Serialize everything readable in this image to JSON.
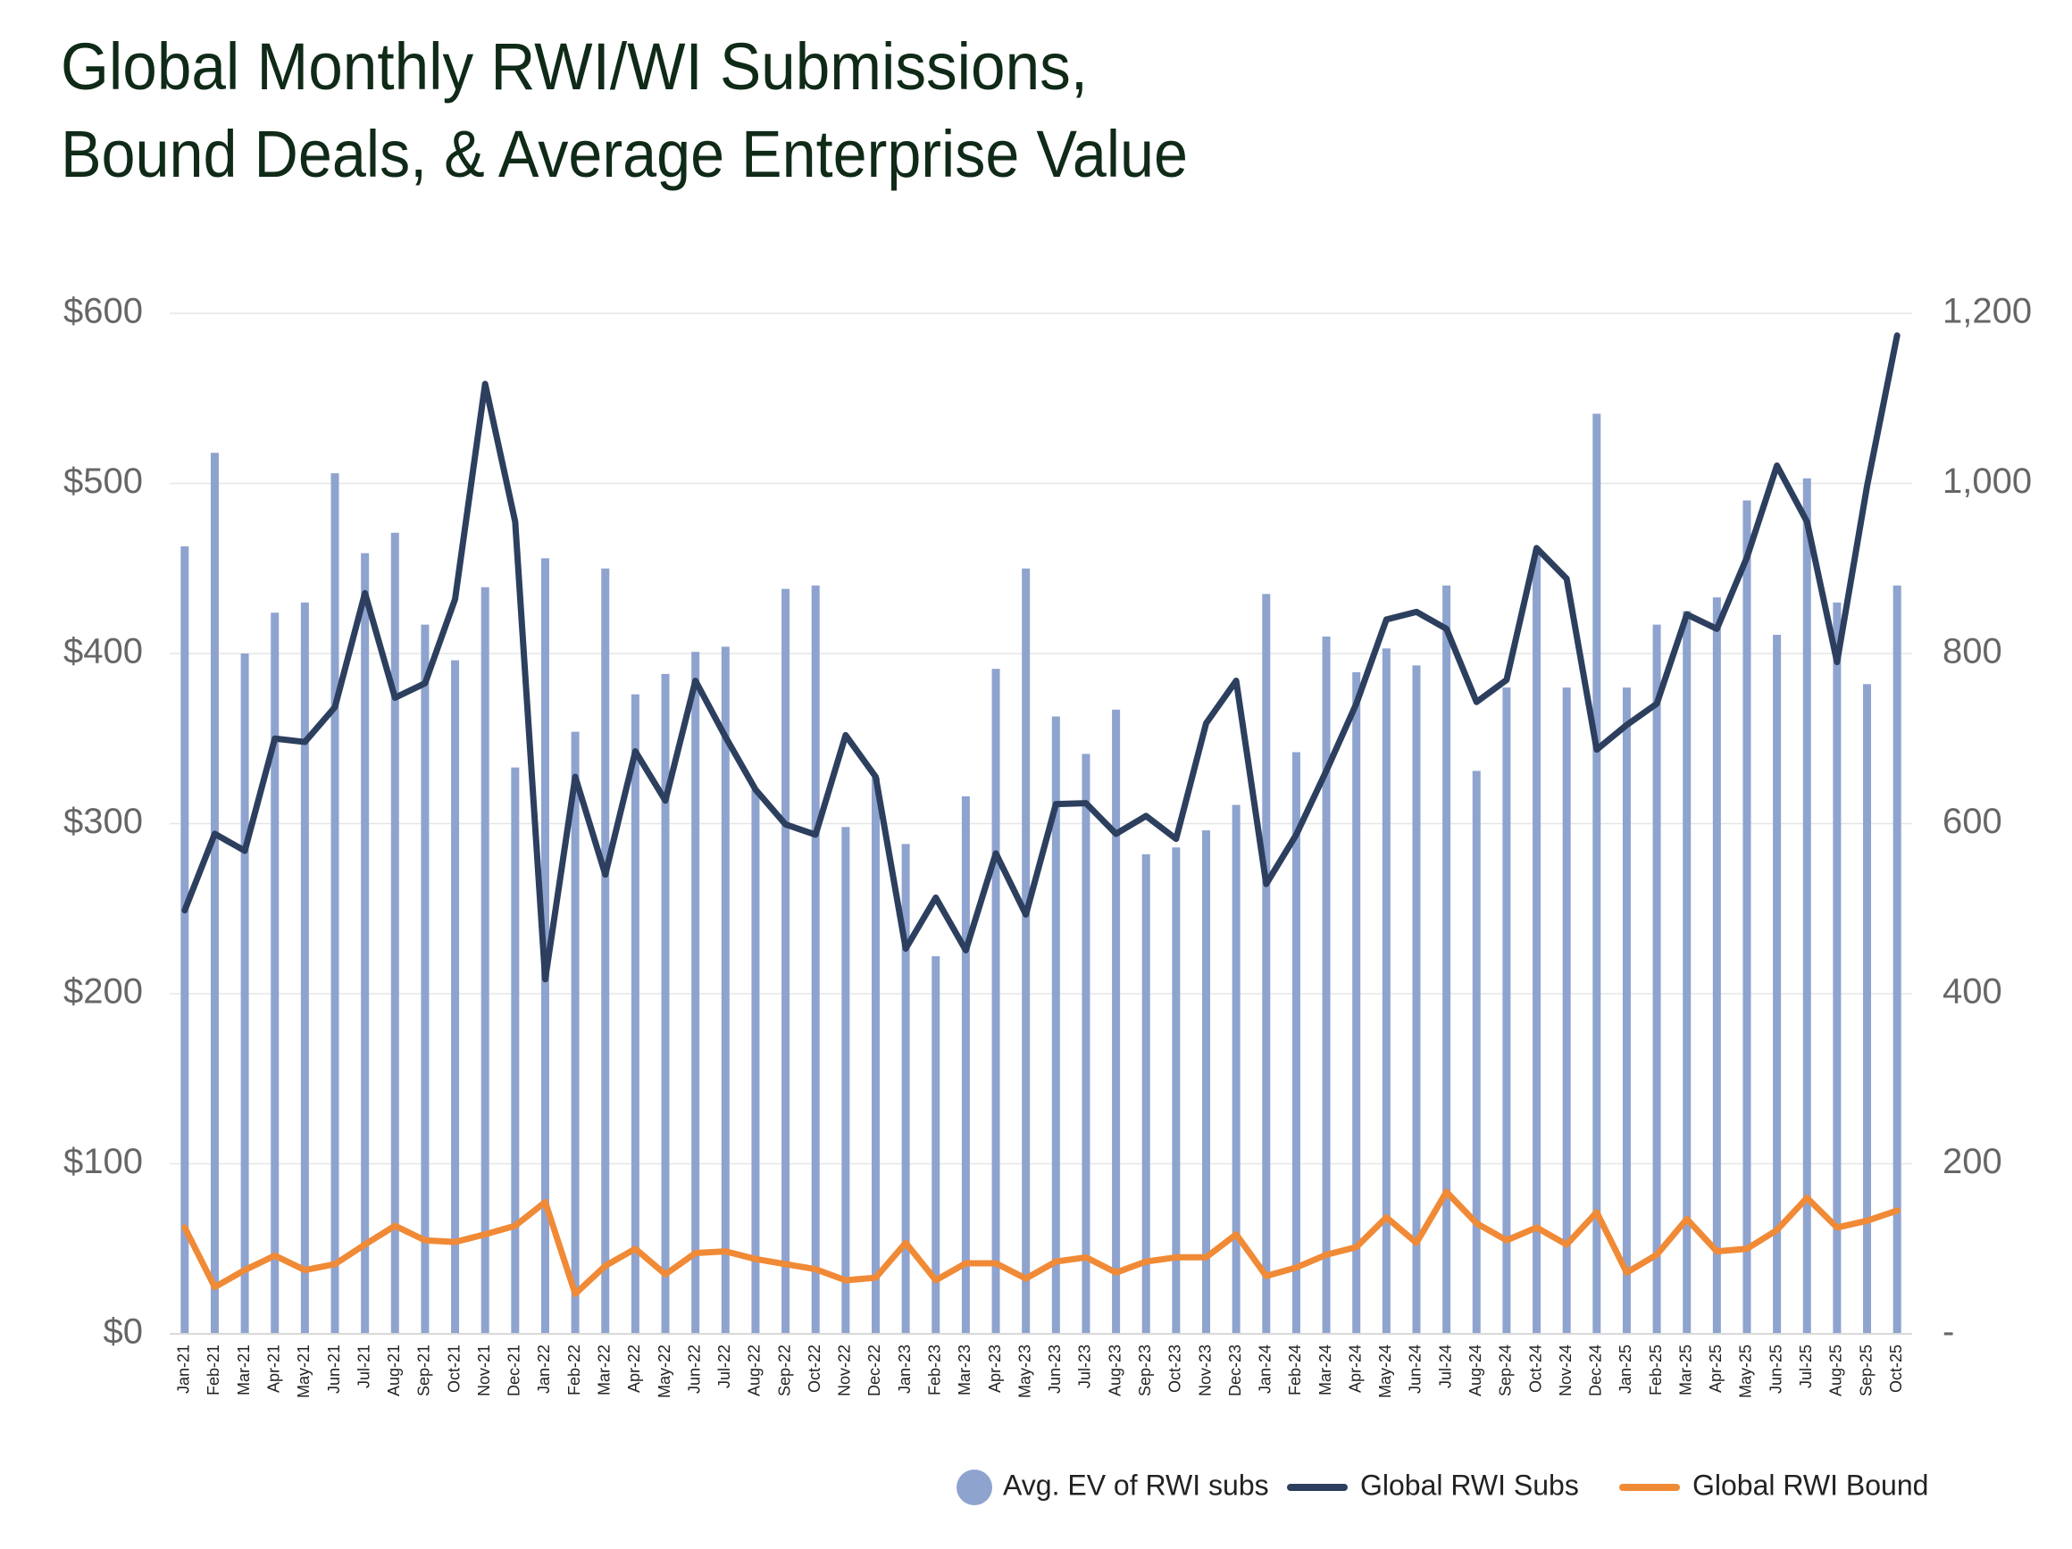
{
  "chart_data": {
    "type": "combo",
    "title": [
      "Global Monthly RWI/WI Submissions,",
      "Bound Deals, & Average Enterprise Value"
    ],
    "categories": [
      "Jan-21",
      "Feb-21",
      "Mar-21",
      "Apr-21",
      "May-21",
      "Jun-21",
      "Jul-21",
      "Aug-21",
      "Sep-21",
      "Oct-21",
      "Nov-21",
      "Dec-21",
      "Jan-22",
      "Feb-22",
      "Mar-22",
      "Apr-22",
      "May-22",
      "Jun-22",
      "Jul-22",
      "Aug-22",
      "Sep-22",
      "Oct-22",
      "Nov-22",
      "Dec-22",
      "Jan-23",
      "Feb-23",
      "Mar-23",
      "Apr-23",
      "May-23",
      "Jun-23",
      "Jul-23",
      "Aug-23",
      "Sep-23",
      "Oct-23",
      "Nov-23",
      "Dec-23",
      "Jan-24",
      "Feb-24",
      "Mar-24",
      "Apr-24",
      "May-24",
      "Jun-24",
      "Jul-24",
      "Aug-24",
      "Sep-24",
      "Oct-24",
      "Nov-24",
      "Dec-24",
      "Jan-25",
      "Feb-25",
      "Mar-25",
      "Apr-25",
      "May-25",
      "Jun-25",
      "Jul-25",
      "Aug-25",
      "Sep-25",
      "Oct-25"
    ],
    "series": [
      {
        "name": "Avg. EV of RWI subs",
        "type": "bar",
        "axis": "y",
        "color": "#8fa3cf",
        "values": [
          463,
          518,
          400,
          424,
          430,
          506,
          459,
          471,
          417,
          396,
          439,
          333,
          456,
          354,
          450,
          376,
          388,
          401,
          404,
          320,
          438,
          440,
          298,
          327,
          288,
          222,
          316,
          391,
          450,
          363,
          341,
          367,
          282,
          286,
          296,
          311,
          435,
          342,
          410,
          389,
          403,
          393,
          440,
          331,
          380,
          461,
          380,
          541,
          380,
          417,
          425,
          433,
          490,
          411,
          503,
          430,
          382,
          440
        ]
      },
      {
        "name": "Global RWI Subs",
        "type": "line",
        "axis": "y2",
        "color": "#2d3f5e",
        "values": [
          498,
          588,
          568,
          700,
          696,
          737,
          871,
          748,
          765,
          864,
          1117,
          955,
          417,
          655,
          540,
          685,
          627,
          768,
          702,
          640,
          599,
          587,
          704,
          655,
          453,
          513,
          451,
          565,
          493,
          623,
          624,
          588,
          609,
          582,
          718,
          768,
          529,
          587,
          662,
          741,
          840,
          849,
          829,
          743,
          769,
          924,
          888,
          687,
          716,
          741,
          846,
          829,
          913,
          1021,
          955,
          790,
          997,
          1174
        ]
      },
      {
        "name": "Global RWI Bound",
        "type": "line",
        "axis": "y2",
        "color": "#f08a36",
        "values": [
          125,
          55,
          75,
          92,
          75,
          82,
          105,
          127,
          110,
          108,
          117,
          127,
          155,
          47,
          80,
          100,
          70,
          95,
          97,
          88,
          82,
          76,
          63,
          66,
          107,
          63,
          83,
          83,
          65,
          85,
          90,
          72,
          85,
          90,
          90,
          117,
          68,
          78,
          93,
          102,
          137,
          107,
          167,
          130,
          110,
          125,
          105,
          143,
          72,
          93,
          135,
          97,
          100,
          122,
          160,
          125,
          133,
          145
        ]
      }
    ],
    "ylim": [
      0,
      600
    ],
    "yticks": [
      {
        "value": 0,
        "label": "$0"
      },
      {
        "value": 100,
        "label": "$100"
      },
      {
        "value": 200,
        "label": "$200"
      },
      {
        "value": 300,
        "label": "$300"
      },
      {
        "value": 400,
        "label": "$400"
      },
      {
        "value": 500,
        "label": "$500"
      },
      {
        "value": 600,
        "label": "$600"
      }
    ],
    "y2lim": [
      0,
      1200
    ],
    "y2ticks": [
      {
        "value": 0,
        "label": "-"
      },
      200,
      400,
      600,
      800,
      1000,
      {
        "value": 1000,
        "label": "1,000"
      },
      {
        "value": 1200,
        "label": "1,200"
      }
    ],
    "grid": true,
    "legend": "bottom-right"
  }
}
